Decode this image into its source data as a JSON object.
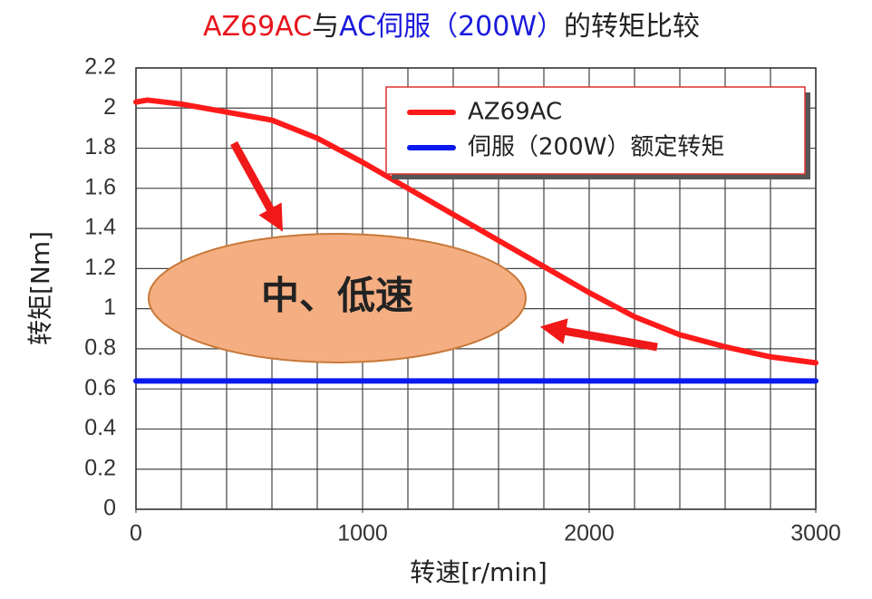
{
  "chart_data": {
    "type": "line",
    "title_parts": [
      {
        "text": "AZ69AC",
        "color": "#e8141c"
      },
      {
        "text": "与",
        "color": "#222222"
      },
      {
        "text": "AC伺服（200W）",
        "color": "#1a1adc"
      },
      {
        "text": "的转矩比较",
        "color": "#222222"
      }
    ],
    "x_label": "转速[r/min]",
    "y_label": "转矩[Nm]",
    "xlim": [
      0,
      3000
    ],
    "xticks": [
      0,
      1000,
      2000,
      3000
    ],
    "xgrid": [
      0,
      200,
      400,
      600,
      800,
      1000,
      1200,
      1400,
      1600,
      1800,
      2000,
      2200,
      2400,
      2600,
      2800,
      3000
    ],
    "ylim": [
      0,
      2.2
    ],
    "yticks": [
      0,
      0.2,
      0.4,
      0.6,
      0.8,
      1,
      1.2,
      1.4,
      1.6,
      1.8,
      2,
      2.2
    ],
    "grid": true,
    "series": [
      {
        "name": "AZ69AC",
        "color": "#ff1a1a",
        "x": [
          0,
          50,
          200,
          400,
          600,
          800,
          1000,
          1200,
          1400,
          1600,
          1800,
          2000,
          2200,
          2400,
          2600,
          2800,
          3000
        ],
        "values": [
          2.03,
          2.04,
          2.02,
          1.98,
          1.94,
          1.85,
          1.73,
          1.6,
          1.47,
          1.34,
          1.21,
          1.08,
          0.96,
          0.87,
          0.81,
          0.76,
          0.73
        ]
      },
      {
        "name": "伺服（200W）额定转矩",
        "color": "#0a1aee",
        "x": [
          0,
          3000
        ],
        "values": [
          0.64,
          0.64
        ]
      }
    ],
    "annotation": "中、低速"
  }
}
